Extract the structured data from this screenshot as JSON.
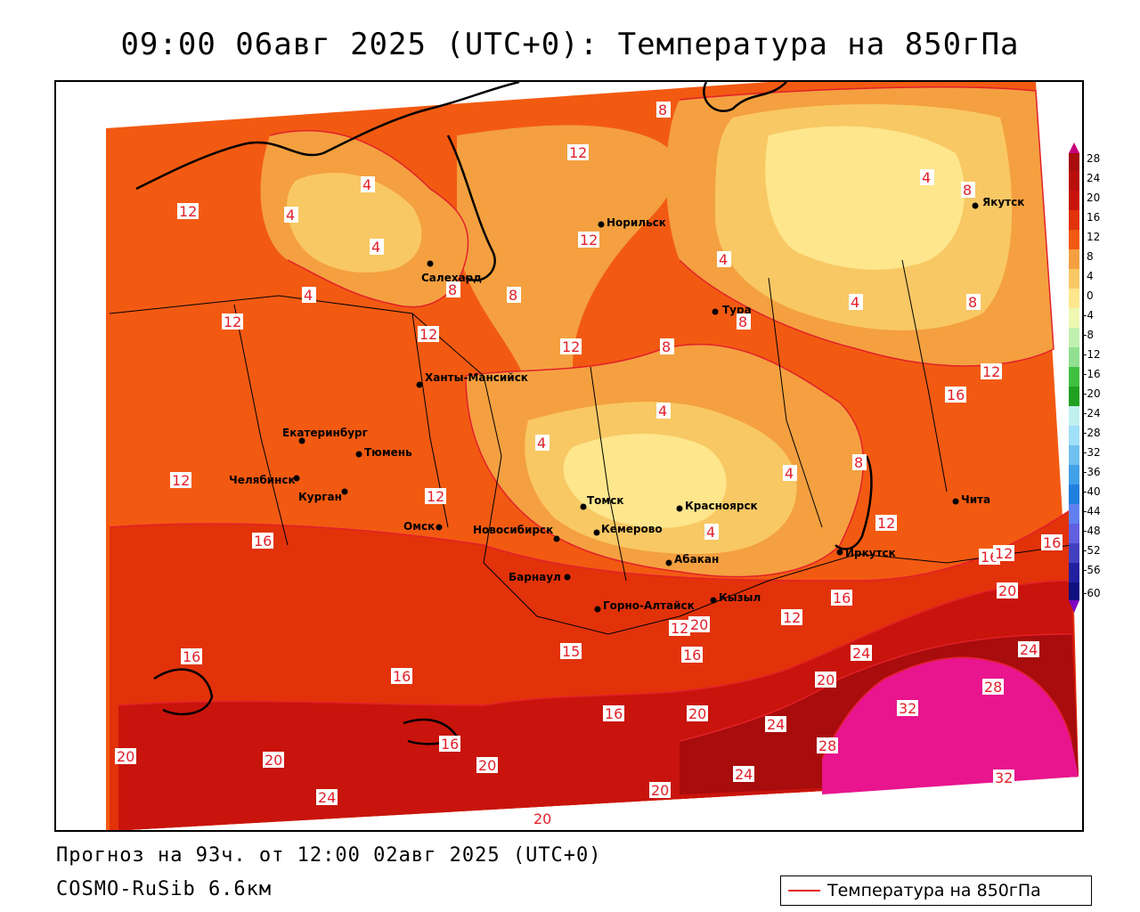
{
  "header": {
    "title": "09:00 06авг 2025 (UTC+0): Температура на 850гПа"
  },
  "footer": {
    "forecast": "Прогноз на 93ч. от 12:00 02авг 2025 (UTC+0)",
    "model": "COSMO-RuSib 6.6км"
  },
  "legend": {
    "label": "Температура на 850гПа",
    "line_color": "#e2202a"
  },
  "colorbar": {
    "ticks": [
      "28",
      "24",
      "20",
      "16",
      "12",
      "8",
      "4",
      "0",
      "-4",
      "-8",
      "-12",
      "-16",
      "-20",
      "-24",
      "-28",
      "-32",
      "-36",
      "-40",
      "-44",
      "-48",
      "-52",
      "-56",
      "-60"
    ]
  },
  "colors": {
    "warm32": "#e8158e",
    "warm24": "#a80c0c",
    "warm20": "#c8140c",
    "warm16": "#e2320a",
    "warm12": "#f25a12",
    "warm8": "#f4a040",
    "warm4": "#f8c864",
    "warm0": "#fde68c",
    "isoline": "#e2202a"
  },
  "cities": [
    {
      "name": "Якутск"
    },
    {
      "name": "Норильск"
    },
    {
      "name": "Салехард"
    },
    {
      "name": "Тура"
    },
    {
      "name": "Ханты-Мансийск"
    },
    {
      "name": "Екатеринбург"
    },
    {
      "name": "Тюмень"
    },
    {
      "name": "Челябинск"
    },
    {
      "name": "Курган"
    },
    {
      "name": "Омск"
    },
    {
      "name": "Томск"
    },
    {
      "name": "Красноярск"
    },
    {
      "name": "Новосибирск"
    },
    {
      "name": "Кемерово"
    },
    {
      "name": "Абакан"
    },
    {
      "name": "Барнаул"
    },
    {
      "name": "Горно-Алтайск"
    },
    {
      "name": "Кызыл"
    },
    {
      "name": "Иркутск"
    },
    {
      "name": "Чита"
    }
  ],
  "isolabels": [
    "8",
    "12",
    "4",
    "8",
    "12",
    "4",
    "4",
    "4",
    "12",
    "8",
    "8",
    "4",
    "4",
    "8",
    "12",
    "12",
    "8",
    "8",
    "12",
    "16",
    "12",
    "4",
    "4",
    "4",
    "8",
    "12",
    "12",
    "4",
    "16",
    "4",
    "12",
    "16",
    "16",
    "20",
    "16",
    "16",
    "20",
    "24",
    "24",
    "16",
    "16",
    "20",
    "20",
    "28",
    "32",
    "16",
    "24",
    "20",
    "28",
    "20",
    "20",
    "24",
    "24",
    "20",
    "20",
    "12",
    "12",
    "15",
    "16",
    "12",
    "32"
  ]
}
